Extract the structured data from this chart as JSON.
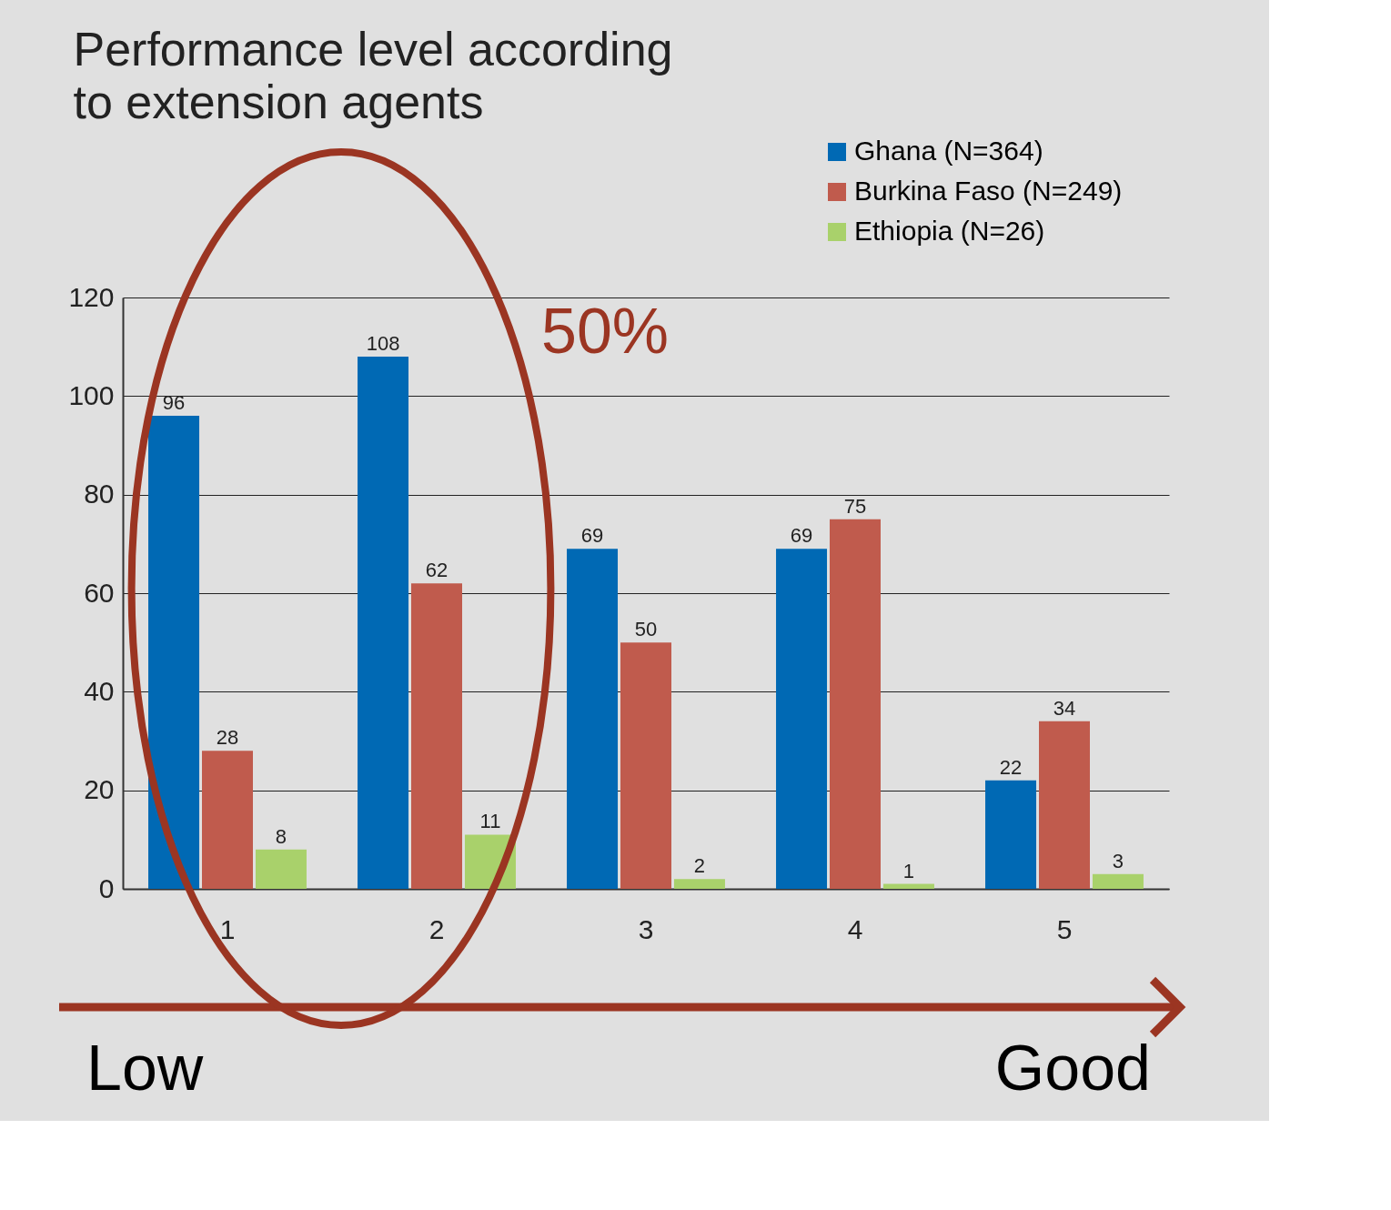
{
  "chart_data": {
    "type": "bar",
    "title": "Performance level according to extension agents",
    "categories": [
      "1",
      "2",
      "3",
      "4",
      "5"
    ],
    "series": [
      {
        "name": "Ghana (N=364)",
        "color": "#0069b4",
        "values": [
          96,
          108,
          69,
          69,
          22
        ]
      },
      {
        "name": "Burkina Faso (N=249)",
        "color": "#c05b4d",
        "values": [
          28,
          62,
          50,
          75,
          34
        ]
      },
      {
        "name": "Ethiopia (N=26)",
        "color": "#a9d16b",
        "values": [
          8,
          11,
          2,
          1,
          3
        ]
      }
    ],
    "ylim": [
      0,
      120
    ],
    "yticks": [
      0,
      20,
      40,
      60,
      80,
      100,
      120
    ],
    "grid": "y",
    "legend": "top right",
    "data_labels": true,
    "annotations": [
      "50%",
      "Low",
      "Good"
    ]
  }
}
